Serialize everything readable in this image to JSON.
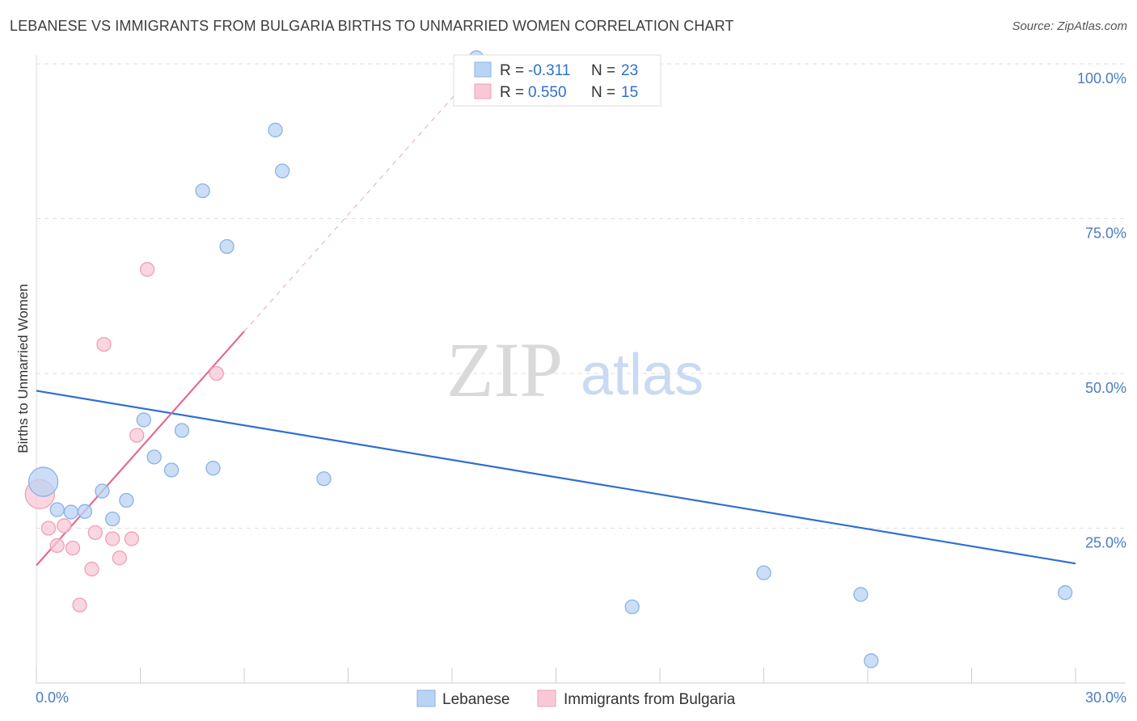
{
  "header": {
    "title": "LEBANESE VS IMMIGRANTS FROM BULGARIA BIRTHS TO UNMARRIED WOMEN CORRELATION CHART",
    "source": "Source: ZipAtlas.com"
  },
  "watermark": {
    "zip": "ZIP",
    "atlas": "atlas"
  },
  "colors": {
    "lebanese_fill": "#b9d3f3",
    "lebanese_stroke": "#8ab2e6",
    "lebanese_line": "#2f6fd0",
    "bulgaria_fill": "#f8c8d6",
    "bulgaria_stroke": "#ef9fb7",
    "bulgaria_line": "#e36b93"
  },
  "stats_legend": [
    {
      "r_label": "R =",
      "r_value": "-0.311",
      "n_label": "N =",
      "n_value": "23"
    },
    {
      "r_label": "R =",
      "r_value": "0.550",
      "n_label": "N =",
      "n_value": "15"
    }
  ],
  "chart_data": {
    "type": "scatter",
    "title": "LEBANESE VS IMMIGRANTS FROM BULGARIA BIRTHS TO UNMARRIED WOMEN CORRELATION CHART",
    "xlabel": "",
    "ylabel": "Births to Unmarried Women",
    "xlim": [
      0,
      30
    ],
    "ylim": [
      0,
      100
    ],
    "x_tick_labels": [
      "0.0%",
      "30.0%"
    ],
    "y_tick_labels": [
      "25.0%",
      "50.0%",
      "75.0%",
      "100.0%"
    ],
    "y_ticks": [
      25,
      50,
      75,
      100
    ],
    "grid": true,
    "legend_position": "bottom",
    "series": [
      {
        "name": "Lebanese",
        "points": [
          {
            "x": 0.2,
            "y": 32.5,
            "size": "large"
          },
          {
            "x": 0.6,
            "y": 28.0
          },
          {
            "x": 1.0,
            "y": 27.6
          },
          {
            "x": 1.4,
            "y": 27.7
          },
          {
            "x": 1.9,
            "y": 31.0
          },
          {
            "x": 2.2,
            "y": 26.5
          },
          {
            "x": 2.6,
            "y": 29.5
          },
          {
            "x": 3.1,
            "y": 42.5
          },
          {
            "x": 3.4,
            "y": 36.5
          },
          {
            "x": 3.9,
            "y": 34.4
          },
          {
            "x": 4.2,
            "y": 40.8
          },
          {
            "x": 4.8,
            "y": 79.5
          },
          {
            "x": 5.1,
            "y": 34.7
          },
          {
            "x": 5.5,
            "y": 70.5
          },
          {
            "x": 6.9,
            "y": 89.3
          },
          {
            "x": 7.1,
            "y": 82.7
          },
          {
            "x": 8.3,
            "y": 33.0
          },
          {
            "x": 12.7,
            "y": 101.0
          },
          {
            "x": 17.2,
            "y": 12.3
          },
          {
            "x": 21.0,
            "y": 17.8
          },
          {
            "x": 23.8,
            "y": 14.3
          },
          {
            "x": 24.1,
            "y": 3.6
          },
          {
            "x": 29.7,
            "y": 14.6
          }
        ],
        "trend": {
          "x": [
            0,
            30
          ],
          "y": [
            47.2,
            19.3
          ]
        }
      },
      {
        "name": "Immigrants from Bulgaria",
        "points": [
          {
            "x": 0.1,
            "y": 30.5,
            "size": "large"
          },
          {
            "x": 0.35,
            "y": 25.0
          },
          {
            "x": 0.6,
            "y": 22.2
          },
          {
            "x": 0.8,
            "y": 25.4
          },
          {
            "x": 1.05,
            "y": 21.8
          },
          {
            "x": 1.25,
            "y": 12.6
          },
          {
            "x": 1.6,
            "y": 18.4
          },
          {
            "x": 1.7,
            "y": 24.3
          },
          {
            "x": 1.95,
            "y": 54.7
          },
          {
            "x": 2.2,
            "y": 23.3
          },
          {
            "x": 2.4,
            "y": 20.2
          },
          {
            "x": 2.75,
            "y": 23.3
          },
          {
            "x": 2.9,
            "y": 40.0
          },
          {
            "x": 3.2,
            "y": 66.8
          },
          {
            "x": 5.2,
            "y": 50.0
          }
        ],
        "trend": {
          "x": [
            0,
            6.0
          ],
          "y": [
            19.0,
            56.8
          ]
        },
        "trend_extension": {
          "x": [
            6.0,
            12.4
          ],
          "y": [
            56.8,
            97.0
          ]
        }
      }
    ]
  },
  "bottom_legend": [
    {
      "label": "Lebanese"
    },
    {
      "label": "Immigrants from Bulgaria"
    }
  ]
}
